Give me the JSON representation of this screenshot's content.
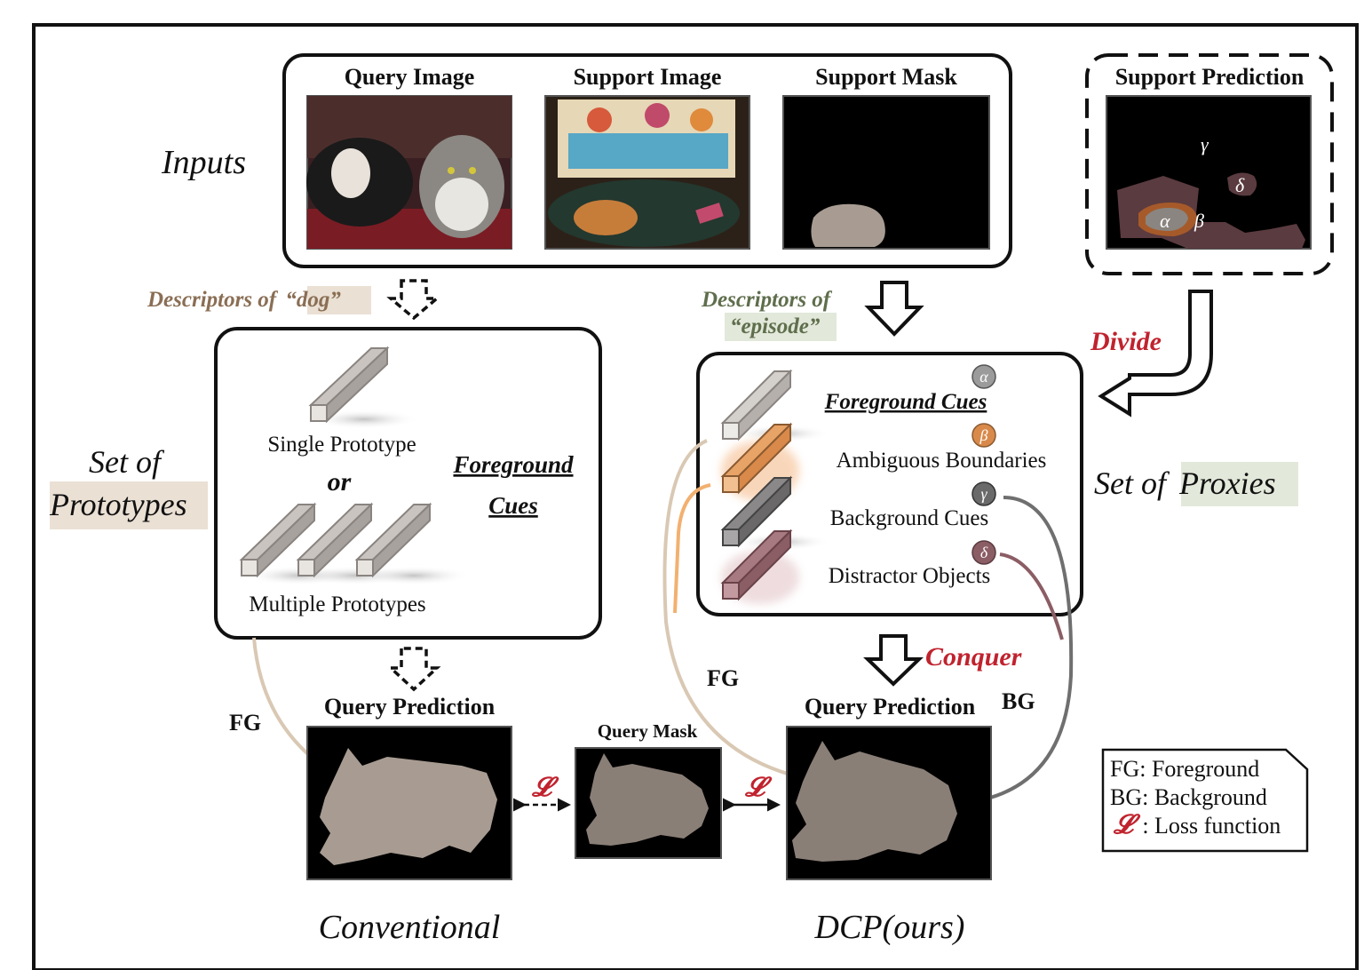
{
  "inputs": {
    "label": "Inputs",
    "query_image_label": "Query Image",
    "support_image_label": "Support Image",
    "support_mask_label": "Support Mask"
  },
  "support_prediction": {
    "label": "Support Prediction",
    "regions": [
      "γ",
      "δ",
      "α",
      "β"
    ]
  },
  "descriptors": {
    "dog_prefix": "Descriptors of",
    "dog_term": "“dog”",
    "episode_prefix": "Descriptors of",
    "episode_term": "“episode”"
  },
  "steps": {
    "divide": "Divide",
    "conquer": "Conquer"
  },
  "prototypes": {
    "set_line1": "Set of",
    "set_line2": "Prototypes",
    "single": "Single Prototype",
    "or": "or",
    "multiple": "Multiple Prototypes",
    "fg_cues_line1": "Foreground",
    "fg_cues_line2": "Cues"
  },
  "proxies": {
    "set_prefix": "Set of",
    "set_term": "Proxies",
    "items": [
      {
        "symbol": "α",
        "label": "Foreground Cues",
        "color": "#9b9b9b"
      },
      {
        "symbol": "β",
        "label": "Ambiguous Boundaries",
        "color": "#d98a4a"
      },
      {
        "symbol": "γ",
        "label": "Background Cues",
        "color": "#6a6a6a"
      },
      {
        "symbol": "δ",
        "label": "Distractor Objects",
        "color": "#8b5d64"
      }
    ]
  },
  "predictions": {
    "query_prediction_left": "Query Prediction",
    "query_mask": "Query Mask",
    "query_prediction_right": "Query Prediction",
    "fg_left": "FG",
    "fg_right": "FG",
    "bg_right": "BG",
    "loss_symbol": "𝓛"
  },
  "methods": {
    "conventional": "Conventional",
    "ours": "DCP(ours)"
  },
  "legend": {
    "fg": "FG: Foreground",
    "bg": "BG: Background",
    "loss_symbol": "𝓛",
    "loss": ": Loss function"
  },
  "colors": {
    "mask_fill": "#8a7f77",
    "dog_highlight": "#eae0d4",
    "episode_highlight": "#e2e8da",
    "proxies_highlight": "#e2e8da",
    "prototypes_highlight": "#eae0d4",
    "accent_red": "#c0232e",
    "fg_arrow": "#d9c8b3",
    "fg_boundary_arrow": "#f2b070",
    "bg_arrow": "#6f6f6f",
    "distractor_arrow": "#8b5d64"
  }
}
